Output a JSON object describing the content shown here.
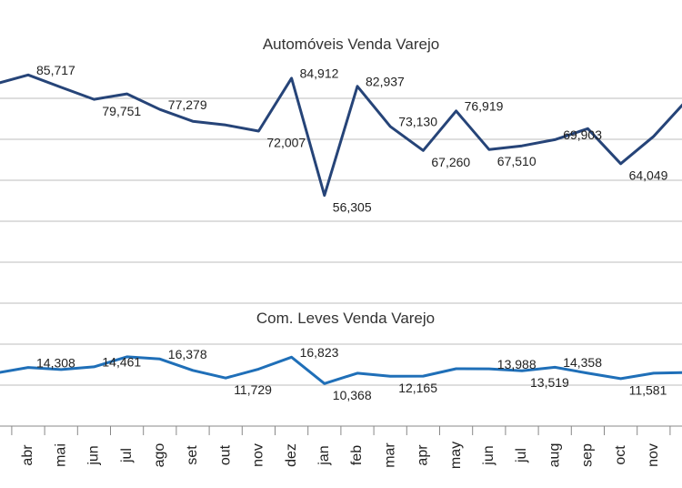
{
  "chart_data": {
    "type": "line",
    "titles": [
      "Automóveis Venda Varejo",
      "Com. Leves Venda Varejo"
    ],
    "categories": [
      null,
      "abr",
      "mai",
      "jun",
      "jul",
      "ago",
      "set",
      "out",
      "nov",
      "dez",
      "jan",
      "feb",
      "mar",
      "apr",
      "may",
      "jun",
      "jul",
      "aug",
      "sep",
      "oct",
      "nov",
      null
    ],
    "series": [
      {
        "name": "Automóveis Venda Varejo",
        "color": "#264478",
        "values": [
          83500,
          85717,
          82700,
          79751,
          81100,
          77279,
          74400,
          73500,
          72007,
          84912,
          56305,
          82937,
          73130,
          67260,
          76919,
          67510,
          68400,
          69903,
          72600,
          64049,
          70700,
          79500
        ],
        "value_labels": [
          null,
          "85,717",
          null,
          "79,751",
          null,
          "77,279",
          null,
          null,
          "72,007",
          "84,912",
          "56,305",
          "82,937",
          "73,130",
          "67,260",
          "76,919",
          "67,510",
          null,
          "69,903",
          null,
          "64,049",
          null,
          null
        ]
      },
      {
        "name": "Com. Leves Venda Varejo",
        "color": "#1f6fb8",
        "values": [
          12900,
          14308,
          13800,
          14461,
          16900,
          16378,
          13600,
          11729,
          13900,
          16823,
          10368,
          12900,
          12165,
          12200,
          14000,
          13988,
          13519,
          14358,
          12900,
          11581,
          12900,
          13100
        ],
        "value_labels": [
          null,
          "14,308",
          null,
          "14,461",
          null,
          "16,378",
          null,
          "11,729",
          null,
          "16,823",
          "10,368",
          null,
          "12,165",
          null,
          null,
          "13,988",
          "13,519",
          "14,358",
          null,
          "11,581",
          null,
          null
        ]
      }
    ],
    "ylim": [
      0,
      104000
    ],
    "yticks": [
      10000,
      20000,
      30000,
      40000,
      50000,
      60000,
      70000,
      80000
    ],
    "grid": true
  }
}
